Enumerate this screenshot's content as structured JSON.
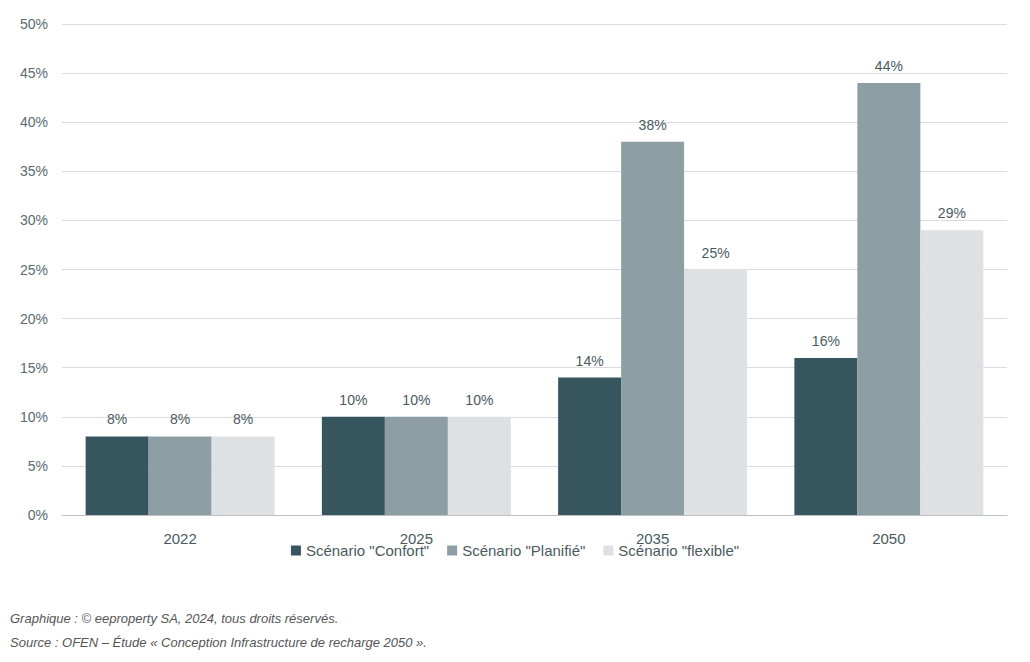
{
  "chart_data": {
    "type": "bar",
    "categories": [
      "2022",
      "2025",
      "2035",
      "2050"
    ],
    "series": [
      {
        "name": "Scénario \"Confort\"",
        "color": "#36555f",
        "values": [
          8,
          10,
          14,
          16
        ],
        "value_labels": [
          "8%",
          "10%",
          "14%",
          "16%"
        ]
      },
      {
        "name": "Scénario \"Planifié\"",
        "color": "#8d9fa4",
        "values": [
          8,
          10,
          38,
          44
        ],
        "value_labels": [
          "8%",
          "10%",
          "38%",
          "44%"
        ]
      },
      {
        "name": "Scénario \"flexible\"",
        "color": "#dde1e4",
        "values": [
          8,
          10,
          25,
          29
        ],
        "value_labels": [
          "8%",
          "10%",
          "25%",
          "29%"
        ]
      }
    ],
    "ylim": [
      0,
      50
    ],
    "yticks": [
      {
        "value": 0,
        "label": "0%"
      },
      {
        "value": 5,
        "label": "5%"
      },
      {
        "value": 10,
        "label": "10%"
      },
      {
        "value": 15,
        "label": "15%"
      },
      {
        "value": 20,
        "label": "20%"
      },
      {
        "value": 25,
        "label": "25%"
      },
      {
        "value": 30,
        "label": "30%"
      },
      {
        "value": 35,
        "label": "35%"
      },
      {
        "value": 40,
        "label": "40%"
      },
      {
        "value": 45,
        "label": "45%"
      },
      {
        "value": 50,
        "label": "50%"
      }
    ],
    "grid": true,
    "legend": "bottom",
    "data_labels": true,
    "annotations": [
      "Graphique : © eeproperty SA, 2024, tous droits réservés.",
      "Source : OFEN – Étude « Conception Infrastructure de recharge 2050 »."
    ]
  }
}
